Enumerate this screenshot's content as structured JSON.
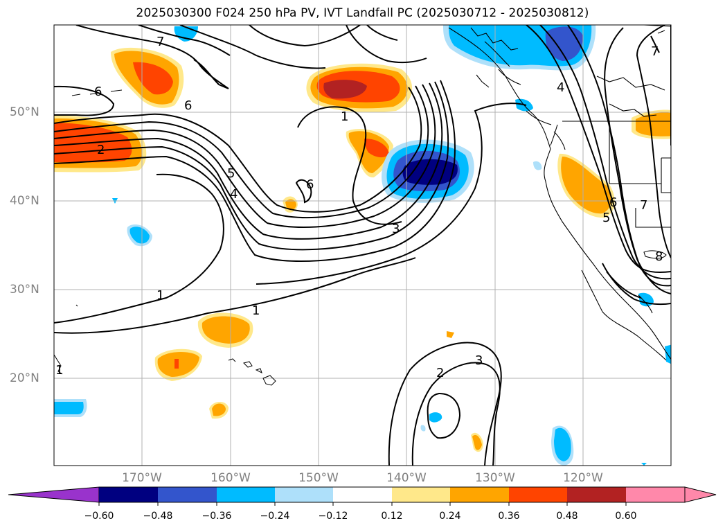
{
  "title": "2025030300 F024 250 hPa PV, IVT Landfall PC (2025030712 - 2025030812)",
  "lat_labels": [
    "50°N",
    "40°N",
    "30°N",
    "20°N"
  ],
  "lon_labels": [
    "170°W",
    "160°W",
    "150°W",
    "140°W",
    "130°W",
    "120°W"
  ],
  "colorbar": {
    "ticks": [
      "−0.60",
      "−0.48",
      "−0.36",
      "−0.24",
      "−0.12",
      "0.12",
      "0.24",
      "0.36",
      "0.48",
      "0.60"
    ],
    "colors": [
      "#9933cc",
      "#000080",
      "#3355cc",
      "#00bbff",
      "#aee0fa",
      "#ffffff",
      "#ffe88a",
      "#ffa500",
      "#ff4400",
      "#b22222",
      "#ff88aa"
    ]
  },
  "contour_labels": [
    "7",
    "6",
    "6",
    "2",
    "5",
    "4",
    "1",
    "6",
    "3",
    "1",
    "1",
    "1",
    "2",
    "3",
    "4",
    "7",
    "6",
    "5",
    "7",
    "8"
  ],
  "colors": {
    "shade_orange": "#ffa500",
    "shade_red": "#ff4400",
    "shade_darkred": "#b22222",
    "shade_yellow": "#ffe88a",
    "shade_lightblue": "#aee0fa",
    "shade_cyan": "#00bbff",
    "shade_blue": "#3355cc",
    "shade_navy": "#000080",
    "grid": "#b0b0b0",
    "contour": "#000000"
  }
}
